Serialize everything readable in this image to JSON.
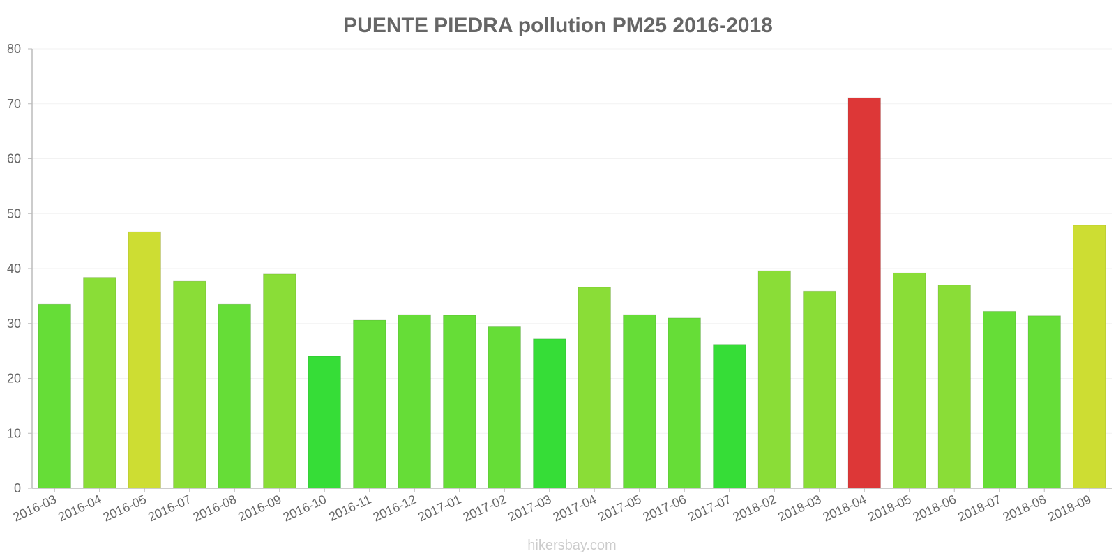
{
  "chart_data": {
    "type": "bar",
    "title": "PUENTE PIEDRA pollution PM25 2016-2018",
    "xlabel": "",
    "ylabel": "",
    "ylim": [
      0,
      80
    ],
    "yticks": [
      "0",
      "10",
      "20",
      "30",
      "40",
      "50",
      "60",
      "70",
      "80"
    ],
    "grid": true,
    "categories": [
      "2016-03",
      "2016-04",
      "2016-05",
      "2016-07",
      "2016-08",
      "2016-09",
      "2016-10",
      "2016-11",
      "2016-12",
      "2017-01",
      "2017-02",
      "2017-03",
      "2017-04",
      "2017-05",
      "2017-06",
      "2017-07",
      "2018-02",
      "2018-03",
      "2018-04",
      "2018-05",
      "2018-06",
      "2018-07",
      "2018-08",
      "2018-09"
    ],
    "values": [
      33.5,
      38.4,
      46.7,
      37.7,
      33.5,
      39.0,
      24.0,
      30.6,
      31.6,
      31.5,
      29.4,
      27.2,
      36.6,
      31.6,
      31.0,
      26.2,
      39.6,
      35.9,
      71.1,
      39.2,
      37.0,
      32.2,
      31.4,
      47.9
    ],
    "bar_colors": [
      "#66dd37",
      "#8add37",
      "#cddd33",
      "#8add37",
      "#66dd37",
      "#8add37",
      "#36dd37",
      "#66dd37",
      "#66dd37",
      "#66dd37",
      "#66dd37",
      "#36dd37",
      "#8add37",
      "#66dd37",
      "#66dd37",
      "#36dd37",
      "#8add37",
      "#8add37",
      "#dd3737",
      "#8add37",
      "#8add37",
      "#66dd37",
      "#66dd37",
      "#cddd33"
    ]
  },
  "watermark": "hikersbay.com"
}
